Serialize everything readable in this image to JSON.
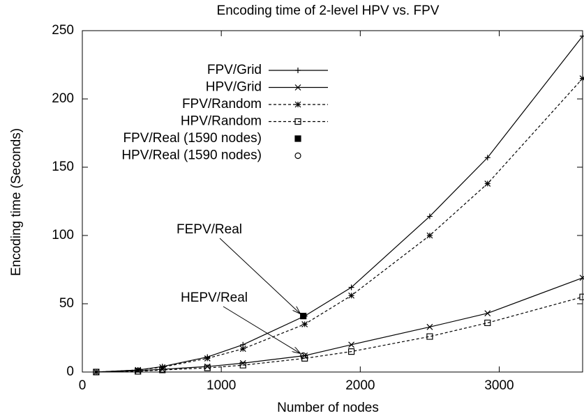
{
  "chart_data": {
    "type": "line",
    "title": "Encoding time of 2-level HPV vs. FPV",
    "xlabel": "Number of nodes",
    "ylabel": "Encoding time (Seconds)",
    "xlim": [
      0,
      3600
    ],
    "ylim": [
      0,
      250
    ],
    "xticks": [
      0,
      1000,
      2000,
      3000
    ],
    "yticks": [
      0,
      50,
      100,
      150,
      200,
      250
    ],
    "legend": "upper left",
    "series": [
      {
        "name": "FPV/Grid",
        "color": "#000000",
        "style": "solid",
        "marker": "plus",
        "x": [
          100,
          400,
          576,
          900,
          1156,
          1600,
          1936,
          2500,
          2916,
          3600
        ],
        "values": [
          0,
          1.5,
          4,
          11,
          20,
          41,
          62,
          114,
          157,
          246
        ]
      },
      {
        "name": "HPV/Grid",
        "color": "#000000",
        "style": "solid",
        "marker": "cross",
        "x": [
          100,
          400,
          576,
          900,
          1156,
          1600,
          1936,
          2500,
          2916,
          3600
        ],
        "values": [
          0,
          1,
          2,
          4,
          6.5,
          12,
          20,
          33,
          43,
          69
        ]
      },
      {
        "name": "FPV/Random",
        "color": "#000000",
        "style": "dashed",
        "marker": "star",
        "x": [
          100,
          400,
          576,
          900,
          1156,
          1600,
          1936,
          2500,
          2916,
          3600
        ],
        "values": [
          0,
          1.5,
          3.5,
          10,
          17,
          35,
          56,
          100,
          138,
          215
        ]
      },
      {
        "name": "HPV/Random",
        "color": "#000000",
        "style": "dashed",
        "marker": "square",
        "x": [
          100,
          400,
          576,
          900,
          1156,
          1600,
          1936,
          2500,
          2916,
          3600
        ],
        "values": [
          0,
          0.5,
          1.5,
          3,
          5,
          10,
          15,
          26,
          36,
          55
        ]
      },
      {
        "name": "FPV/Real (1590 nodes)",
        "color": "#000000",
        "style": "none",
        "marker": "filled-square",
        "x": [
          1590
        ],
        "values": [
          41
        ]
      },
      {
        "name": "HPV/Real (1590 nodes)",
        "color": "#000000",
        "style": "none",
        "marker": "circle",
        "x": [
          1590
        ],
        "values": [
          12
        ]
      }
    ],
    "annotations": [
      {
        "text": "FEPV/Real",
        "series": 4
      },
      {
        "text": "HEPV/Real",
        "series": 5
      }
    ]
  }
}
